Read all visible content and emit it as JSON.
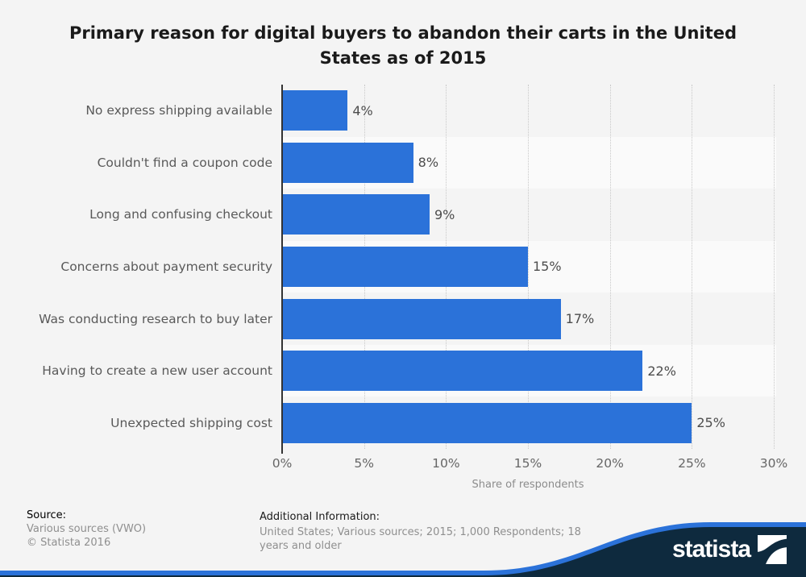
{
  "title": {
    "line1": "Primary reason for digital buyers to abandon their carts in the United",
    "line2": "States as of 2015"
  },
  "chart_data": {
    "type": "bar",
    "orientation": "horizontal",
    "title": "Primary reason for digital buyers to abandon their carts in the United States as of 2015",
    "categories": [
      "No express shipping available",
      "Couldn't find a coupon code",
      "Long and confusing checkout",
      "Concerns about payment security",
      "Was conducting research to buy later",
      "Having to create a new user account",
      "Unexpected shipping cost"
    ],
    "values": [
      4,
      8,
      9,
      15,
      17,
      22,
      25
    ],
    "value_labels": [
      "4%",
      "8%",
      "9%",
      "15%",
      "17%",
      "22%",
      "25%"
    ],
    "xlabel": "Share of respondents",
    "ylabel": "",
    "xlim": [
      0,
      30
    ],
    "xticks": [
      0,
      5,
      10,
      15,
      20,
      25,
      30
    ],
    "xtick_labels": [
      "0%",
      "5%",
      "10%",
      "15%",
      "20%",
      "25%",
      "30%"
    ],
    "grid": "vertical-dotted",
    "legend": "none"
  },
  "colors": {
    "background": "#f4f4f4",
    "row_alt_band": "#fafafa",
    "bar": "#2b72d9",
    "gridline": "#c8c8c8",
    "axis_line": "#333333",
    "navy": "#0e2a3e",
    "wave_blue": "#2b72d9",
    "logo_white": "#ffffff"
  },
  "footer": {
    "source_label": "Source:",
    "source_lines": [
      "Various sources (VWO)",
      "© Statista 2016"
    ],
    "additional_label": "Additional Information:",
    "additional_text": "United States; Various sources; 2015; 1,000 Respondents; 18 years and older",
    "additional_lines": [
      "United States; Various sources; 2015; 1,000 Respondents; 18",
      "years and older"
    ]
  },
  "branding": {
    "logo_text": "statista"
  }
}
